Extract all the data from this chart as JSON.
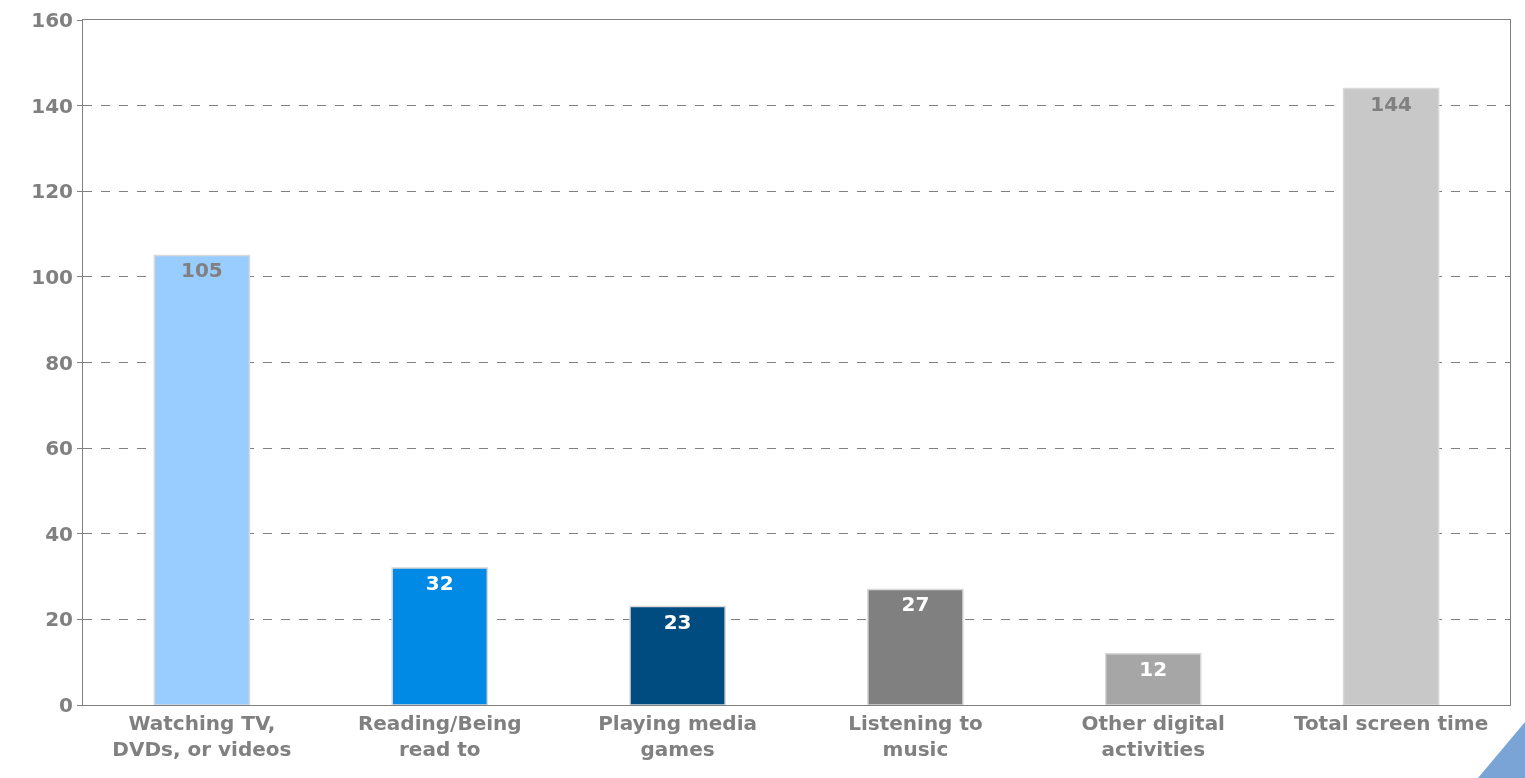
{
  "chart_data": {
    "type": "bar",
    "categories": [
      "Watching TV, DVDs, or videos",
      "Reading/Being read to",
      "Playing media games",
      "Listening to music",
      "Other digital activities",
      "Total screen time"
    ],
    "values": [
      105,
      32,
      23,
      27,
      12,
      144
    ],
    "colors": [
      "#99ccff",
      "#008ae6",
      "#004c80",
      "#808080",
      "#a6a6a6",
      "#c8c8c8"
    ],
    "ylim": [
      0,
      160
    ],
    "yticks": [
      0,
      20,
      40,
      60,
      80,
      100,
      120,
      140,
      160
    ],
    "grid": "y",
    "data_labels": true
  }
}
